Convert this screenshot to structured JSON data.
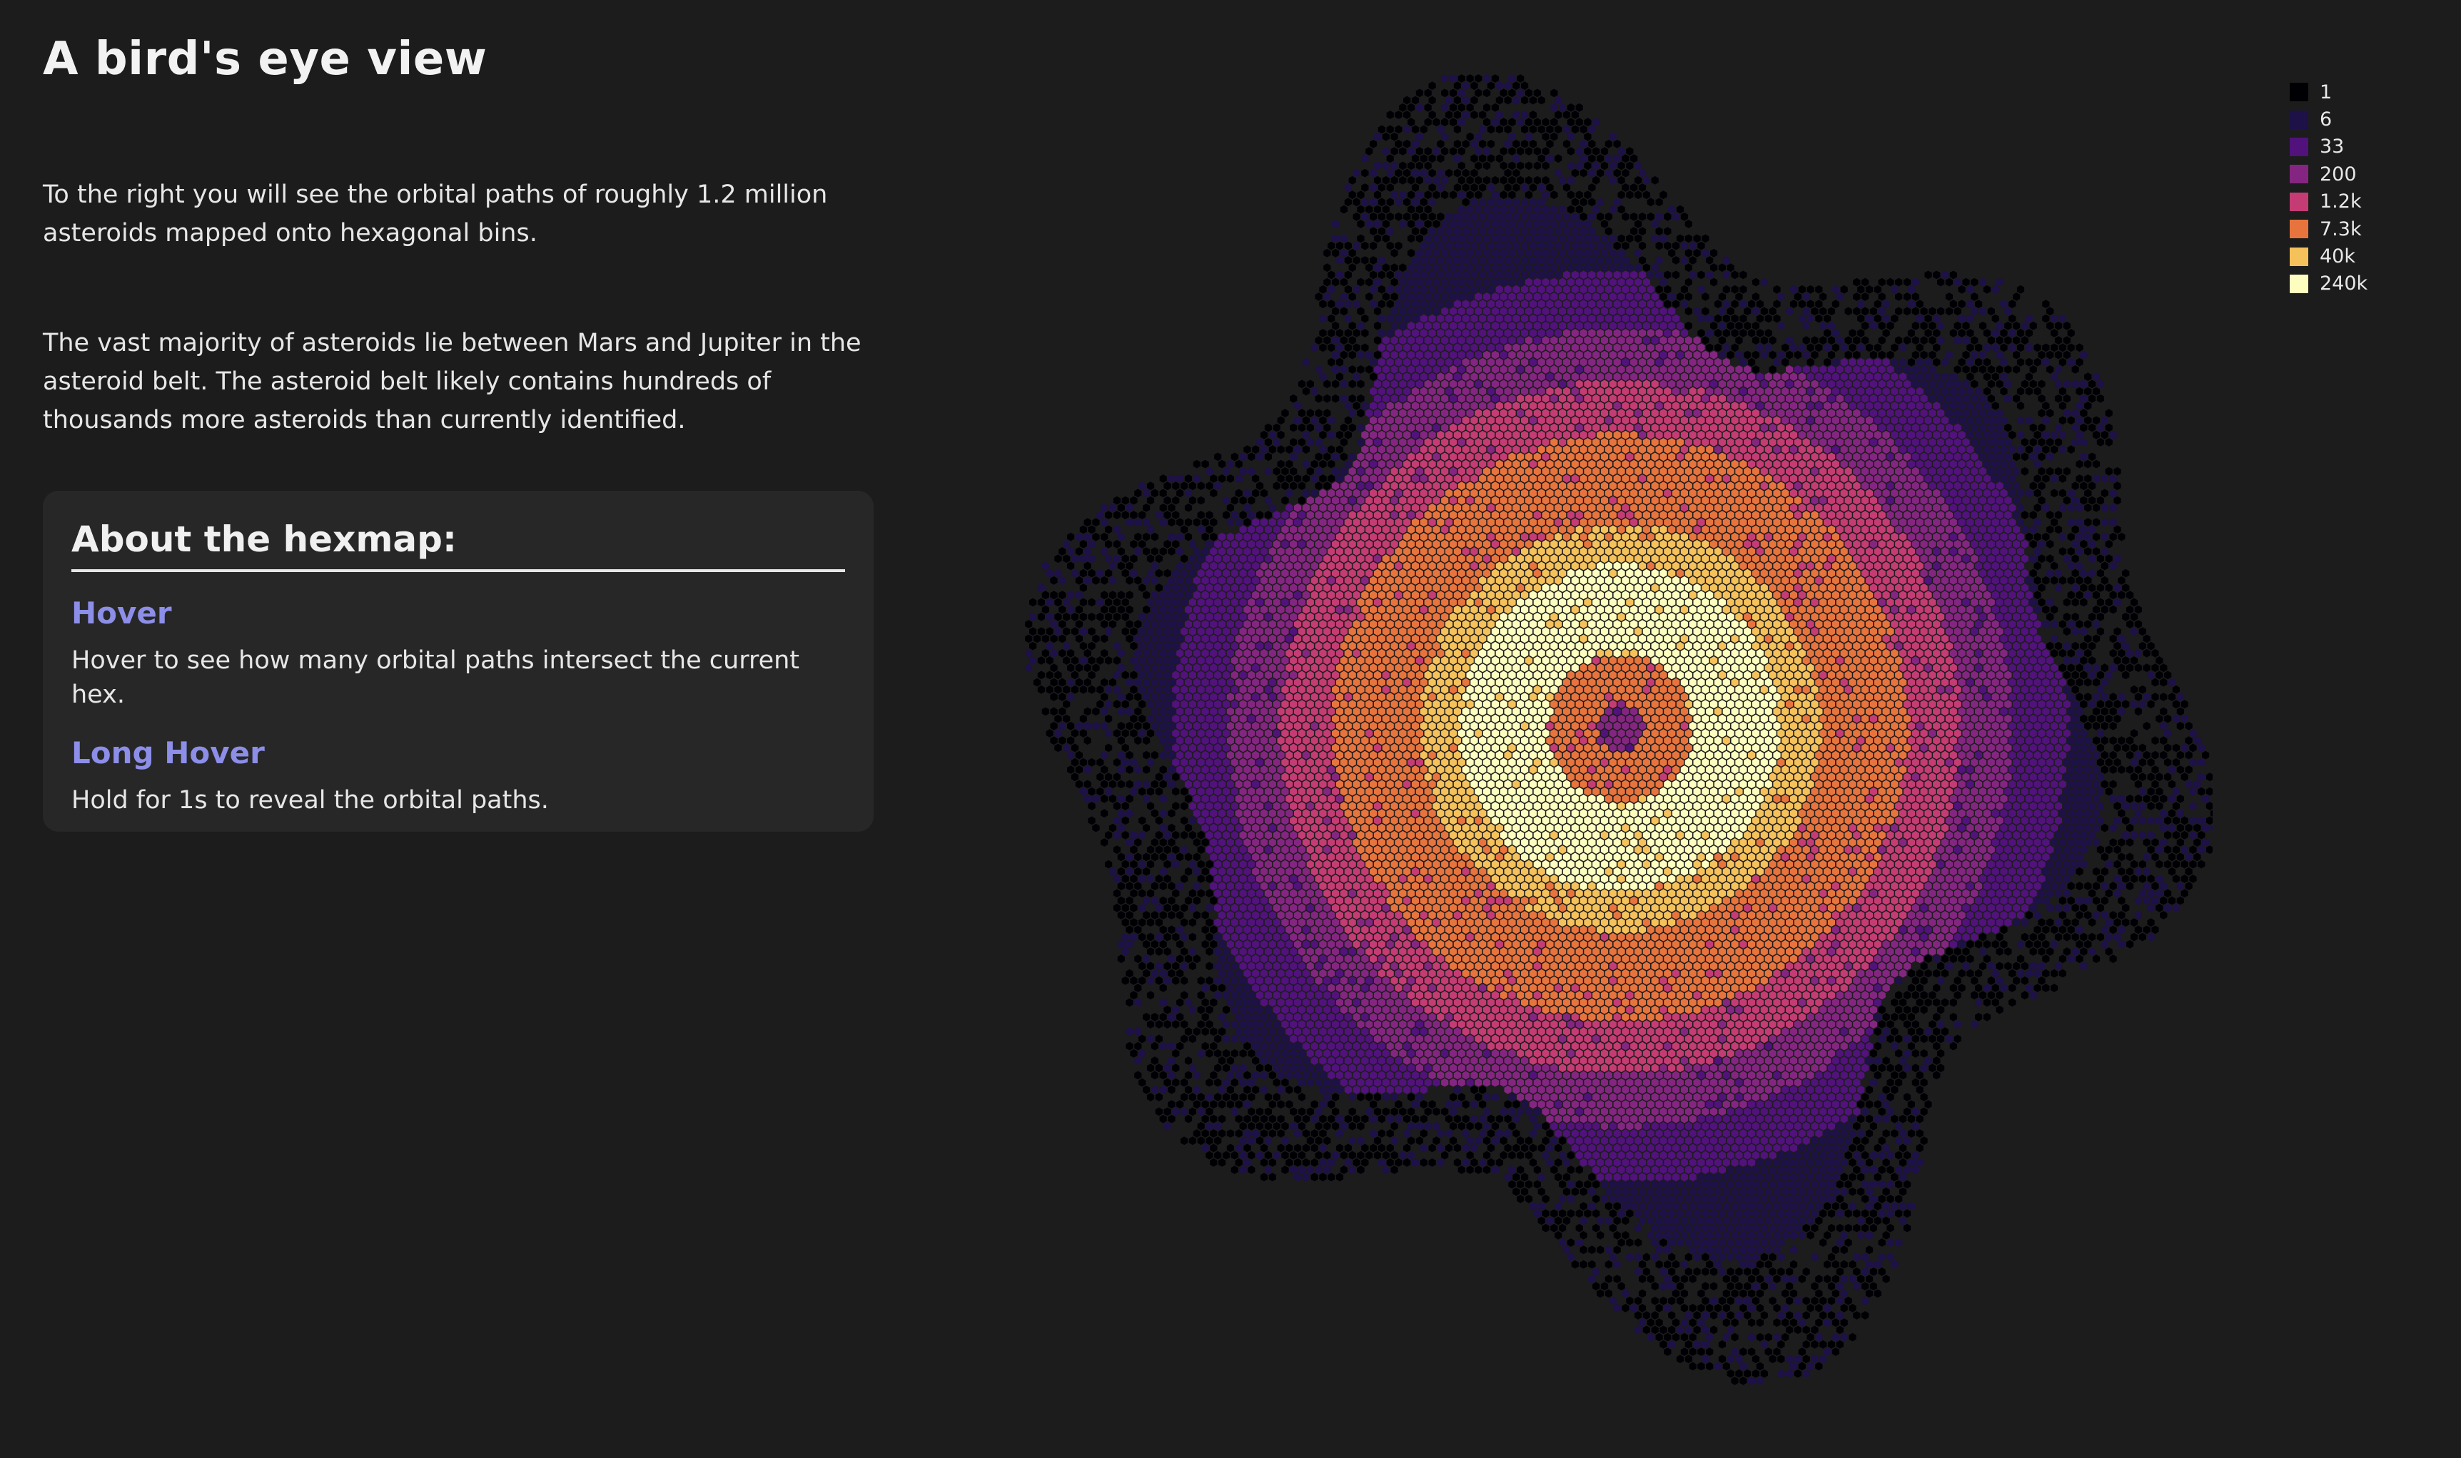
{
  "title": "A bird's eye view",
  "intro": [
    "To the right you will see the orbital paths of roughly 1.2 million asteroids mapped onto hexagonal bins.",
    "The vast majority of asteroids lie between Mars and Jupiter in the asteroid belt. The asteroid belt likely contains hundreds of thousands more asteroids than currently identified."
  ],
  "about": {
    "title": "About the hexmap:",
    "sections": [
      {
        "title": "Hover",
        "text": "Hover to see how many orbital paths intersect the current hex."
      },
      {
        "title": "Long Hover",
        "text": "Hold for 1s to reveal the orbital paths."
      }
    ]
  },
  "legend": [
    {
      "label": "1",
      "color": "#000004"
    },
    {
      "label": "6",
      "color": "#1d1147"
    },
    {
      "label": "33",
      "color": "#51127c"
    },
    {
      "label": "200",
      "color": "#842681"
    },
    {
      "label": "1.2k",
      "color": "#c53c74"
    },
    {
      "label": "7.3k",
      "color": "#e8743d"
    },
    {
      "label": "40k",
      "color": "#f5c15a"
    },
    {
      "label": "240k",
      "color": "#fcfdbf"
    }
  ],
  "chart_data": {
    "type": "heatmap",
    "bin_shape": "hexagon",
    "scale": "log",
    "legend_position": "top-right",
    "grid": false
  }
}
